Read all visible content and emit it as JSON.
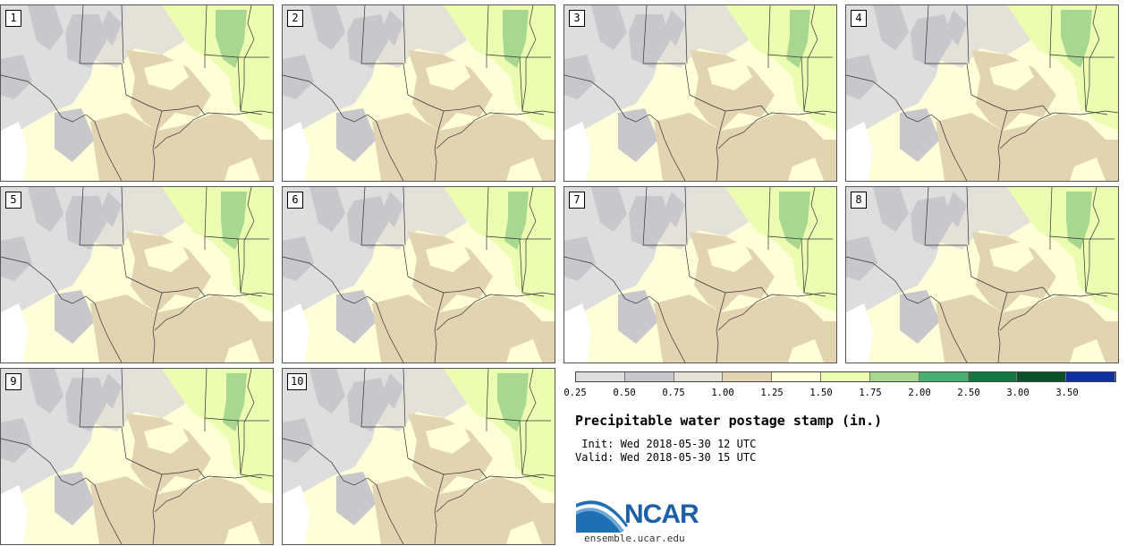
{
  "panels": [
    "1",
    "2",
    "3",
    "4",
    "5",
    "6",
    "7",
    "8",
    "9",
    "10"
  ],
  "legend": {
    "colors": [
      "#dedede",
      "#c8c8cc",
      "#e4e2d8",
      "#e2d4b0",
      "#fefed8",
      "#ecfcb0",
      "#a8d890",
      "#48b070",
      "#107840",
      "#0a5028",
      "#1030a0"
    ],
    "ticks": [
      "0.25",
      "0.50",
      "0.75",
      "1.00",
      "1.25",
      "1.50",
      "1.75",
      "2.00",
      "2.50",
      "3.00",
      "3.50"
    ]
  },
  "map_colors": {
    "white": "#ffffff",
    "light_gray": "#dedede",
    "gray": "#c8c8cc",
    "pale": "#e4e2d8",
    "tan": "#e2d4b0",
    "cream": "#fefed8",
    "light_green": "#ecfcb0",
    "green": "#a8d890"
  },
  "title": "Precipitable water postage stamp (in.)",
  "init": " Init: Wed 2018-05-30 12 UTC",
  "valid": "Valid: Wed 2018-05-30 15 UTC",
  "logo": {
    "text": "NCAR",
    "url": "ensemble.ucar.edu"
  }
}
